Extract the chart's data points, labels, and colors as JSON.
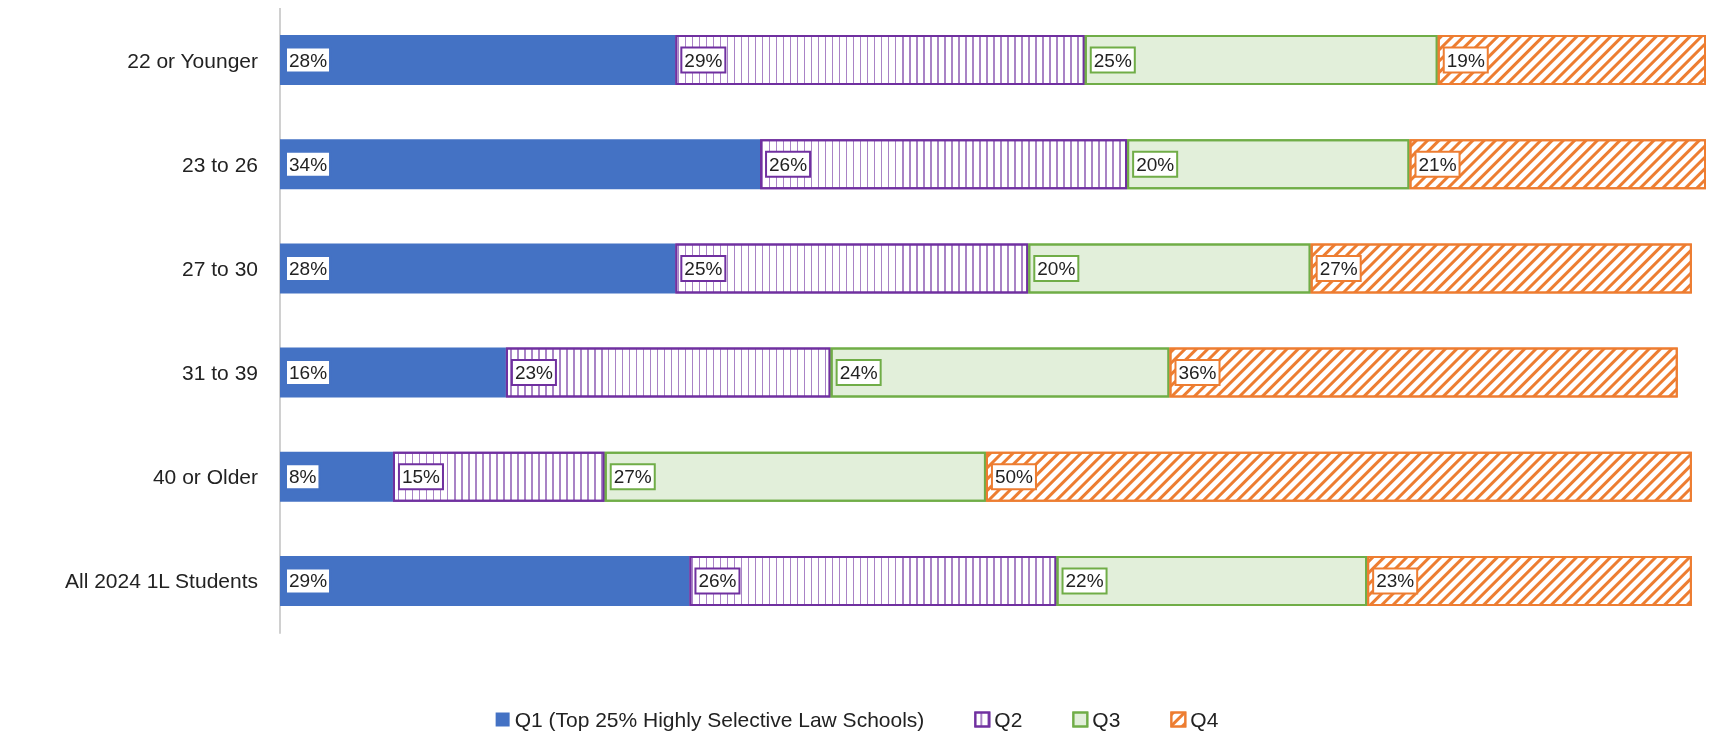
{
  "chart_data": {
    "type": "bar",
    "orientation": "horizontal",
    "stacked": true,
    "legend": "bottom",
    "categories": [
      "22 or Younger",
      "23 to 26",
      "27 to 30",
      "31 to 39",
      "40 or Older",
      "All 2024 1L Students"
    ],
    "series": [
      {
        "name": "Q1 (Top 25% Highly Selective Law Schools)",
        "color": "#4472c4",
        "values": [
          28,
          34,
          28,
          16,
          8,
          29
        ],
        "value_labels": [
          "28%",
          "34%",
          "28%",
          "16%",
          "8%",
          "29%"
        ]
      },
      {
        "name": "Q2",
        "color": "#7030a0",
        "values": [
          29,
          26,
          25,
          23,
          15,
          26
        ],
        "value_labels": [
          "29%",
          "26%",
          "25%",
          "23%",
          "15%",
          "26%"
        ]
      },
      {
        "name": "Q3",
        "color": "#70ad47",
        "values": [
          25,
          20,
          20,
          24,
          27,
          22
        ],
        "value_labels": [
          "25%",
          "20%",
          "20%",
          "24%",
          "27%",
          "22%"
        ]
      },
      {
        "name": "Q4",
        "color": "#ed7d31",
        "values": [
          19,
          21,
          27,
          36,
          50,
          23
        ],
        "value_labels": [
          "19%",
          "21%",
          "27%",
          "36%",
          "50%",
          "23%"
        ]
      }
    ]
  }
}
